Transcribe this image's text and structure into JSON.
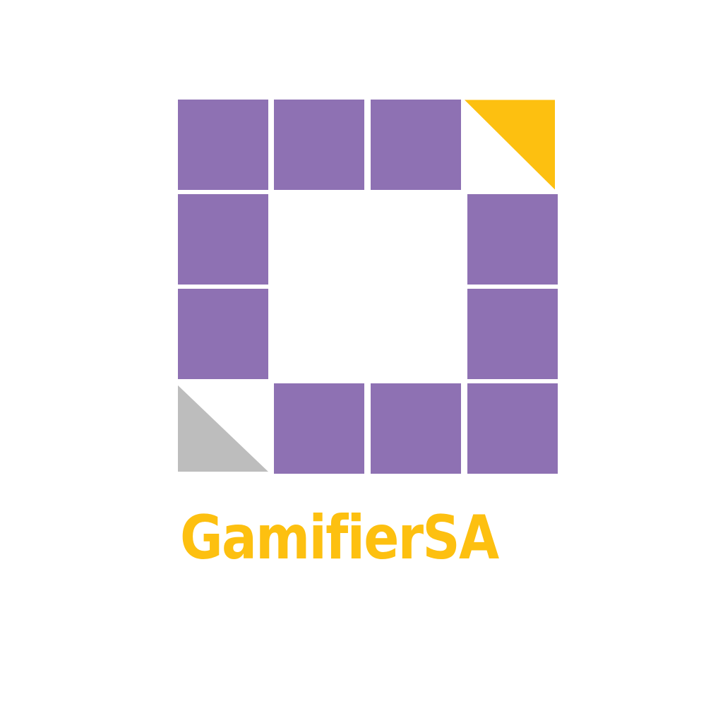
{
  "brand": {
    "name": "GamifierSA",
    "colors": {
      "purple": "#8e71b3",
      "yellow": "#fdc010",
      "gray": "#bdbdbd",
      "background": "#ffffff"
    }
  },
  "logo": {
    "tiles": [
      {
        "row": 0,
        "col": 0,
        "kind": "square",
        "color": "purple"
      },
      {
        "row": 0,
        "col": 1,
        "kind": "square",
        "color": "purple"
      },
      {
        "row": 0,
        "col": 2,
        "kind": "square",
        "color": "purple"
      },
      {
        "row": 0,
        "col": 3,
        "kind": "triangle-top-right",
        "color": "yellow"
      },
      {
        "row": 1,
        "col": 0,
        "kind": "square",
        "color": "purple"
      },
      {
        "row": 1,
        "col": 3,
        "kind": "square",
        "color": "purple"
      },
      {
        "row": 2,
        "col": 0,
        "kind": "square",
        "color": "purple"
      },
      {
        "row": 2,
        "col": 3,
        "kind": "square",
        "color": "purple"
      },
      {
        "row": 3,
        "col": 0,
        "kind": "triangle-bottom-left",
        "color": "gray"
      },
      {
        "row": 3,
        "col": 1,
        "kind": "square",
        "color": "purple"
      },
      {
        "row": 3,
        "col": 2,
        "kind": "square",
        "color": "purple"
      },
      {
        "row": 3,
        "col": 3,
        "kind": "square",
        "color": "purple"
      }
    ]
  }
}
